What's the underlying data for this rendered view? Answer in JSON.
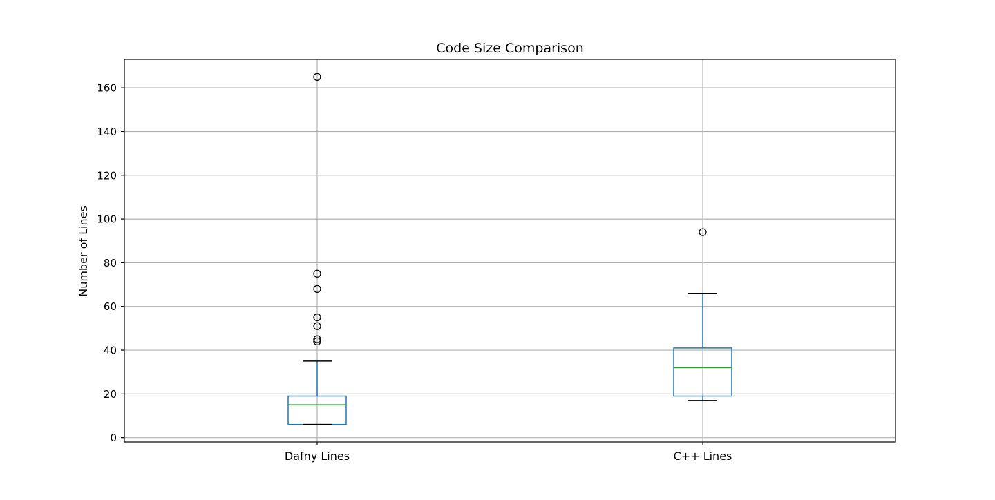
{
  "chart_data": {
    "type": "box",
    "title": "Code Size Comparison",
    "xlabel": "",
    "ylabel": "Number of Lines",
    "ylim": [
      -2,
      173
    ],
    "yticks": [
      0,
      20,
      40,
      60,
      80,
      100,
      120,
      140,
      160
    ],
    "grid": true,
    "legend": "none",
    "categories": [
      "Dafny Lines",
      "C++ Lines"
    ],
    "boxes": [
      {
        "category": "Dafny Lines",
        "whisker_low": 6,
        "q1": 6,
        "median": 15,
        "q3": 19,
        "whisker_high": 35,
        "outliers": [
          44,
          45,
          51,
          55,
          68,
          75,
          165
        ]
      },
      {
        "category": "C++ Lines",
        "whisker_low": 17,
        "q1": 19,
        "median": 32,
        "q3": 41,
        "whisker_high": 66,
        "outliers": [
          94
        ]
      }
    ],
    "colors": {
      "box": "#1f77b4",
      "median": "#2ca02c",
      "cap": "#000000",
      "outlier": "#000000",
      "grid": "#b0b0b0",
      "axes": "#000000"
    }
  }
}
